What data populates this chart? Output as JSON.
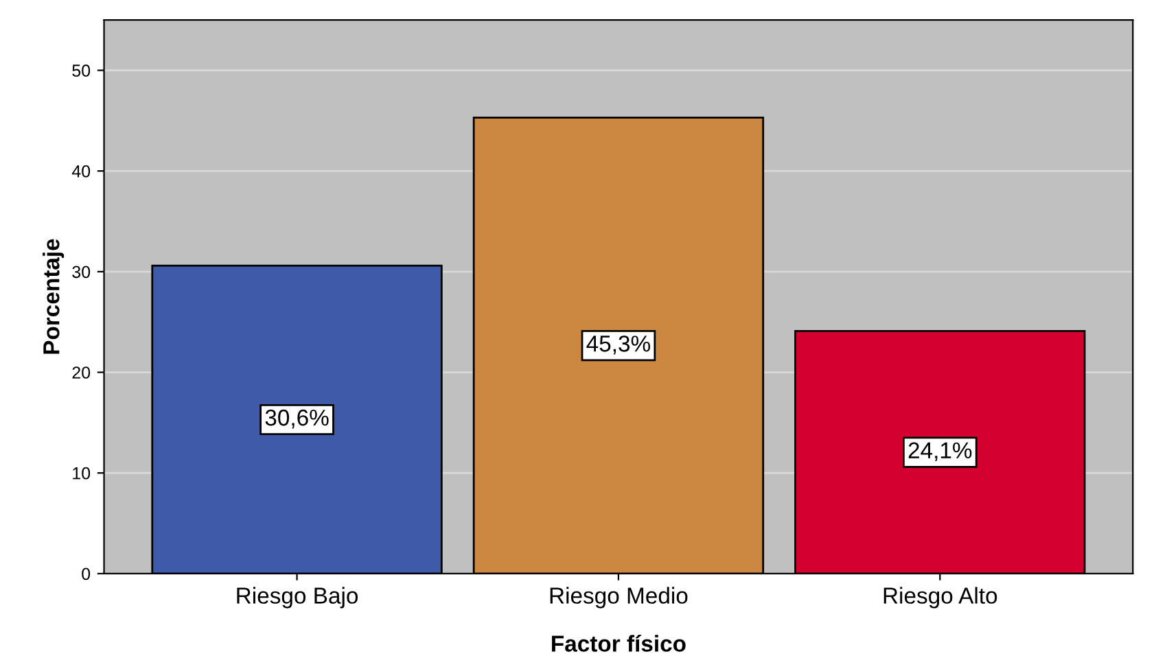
{
  "chart_data": {
    "type": "bar",
    "xlabel": "Factor físico",
    "ylabel": "Porcentaje",
    "categories": [
      "Riesgo Bajo",
      "Riesgo Medio",
      "Riesgo Alto"
    ],
    "values": [
      30.6,
      45.3,
      24.1
    ],
    "colors": [
      "#3f5aa8",
      "#cc8740",
      "#d40030"
    ],
    "value_labels": [
      "30,6%",
      "45,3%",
      "24,1%"
    ],
    "ylim": [
      0,
      55
    ],
    "yticks": [
      0,
      10,
      20,
      30,
      40,
      50
    ],
    "grid": "y",
    "legend": false
  }
}
